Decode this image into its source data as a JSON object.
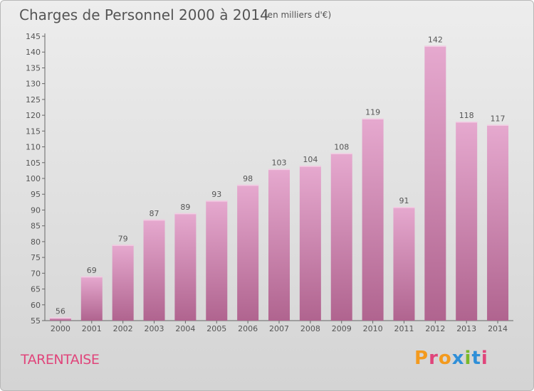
{
  "header": {
    "title": "Charges de Personnel 2000 à 2014",
    "unit": "(en milliers d'€)"
  },
  "footer": {
    "region": "TARENTAISE",
    "logo": "Proxiti"
  },
  "colors": {
    "bar_top": "#e6a9cf",
    "bar_bottom": "#b0648f",
    "text": "#555555",
    "region": "#e0457b",
    "logo_letters": [
      "#f39a1e",
      "#e0457b",
      "#f39a1e",
      "#2f8fd8",
      "#7ab829",
      "#2f8fd8",
      "#e0457b"
    ]
  },
  "chart_data": {
    "type": "bar",
    "title": "Charges de Personnel 2000 à 2014",
    "subtitle": "(en milliers d'€)",
    "categories": [
      "2000",
      "2001",
      "2002",
      "2003",
      "2004",
      "2005",
      "2006",
      "2007",
      "2008",
      "2009",
      "2010",
      "2011",
      "2012",
      "2013",
      "2014"
    ],
    "values": [
      56,
      69,
      79,
      87,
      89,
      93,
      98,
      103,
      104,
      108,
      119,
      91,
      142,
      118,
      117
    ],
    "ylim": [
      55,
      145
    ],
    "yticks": [
      55,
      60,
      65,
      70,
      75,
      80,
      85,
      90,
      95,
      100,
      105,
      110,
      115,
      120,
      125,
      130,
      135,
      140,
      145
    ],
    "grid": false,
    "data_labels": true
  }
}
